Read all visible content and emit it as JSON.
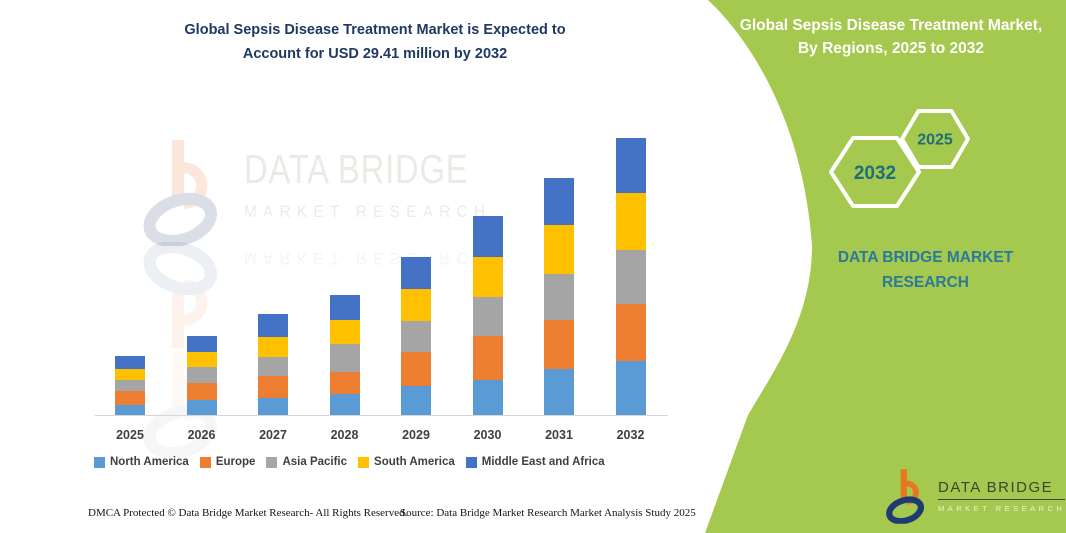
{
  "page": {
    "title_line1": "Global Sepsis Disease Treatment Market is Expected to",
    "title_line2": "Account for USD 29.41 million by 2032",
    "footer_left": "DMCA Protected © Data Bridge Market Research- All Rights Reserved.",
    "footer_right": "Source: Data Bridge Market Research Market Analysis Study 2025"
  },
  "watermark": {
    "line1": "DATA BRIDGE",
    "line2": "MARKET RESEARCH"
  },
  "side_panel": {
    "title": "Global Sepsis Disease Treatment Market, By Regions, 2025 to 2032",
    "hexagon_front_label": "2032",
    "hexagon_back_label": "2025",
    "brand_caption": "DATA BRIDGE MARKET RESEARCH",
    "bg_color": "#A4C94E",
    "hex_text_color": "#1F6F7B"
  },
  "brand_logo": {
    "name": "DATA BRIDGE",
    "tagline": "MARKET RESEARCH",
    "orange": "#E87722",
    "navy": "#1E3C72"
  },
  "chart_data": {
    "type": "bar",
    "stacked": true,
    "title": "Global Sepsis Disease Treatment Market is Expected to Account for USD 29.41 million by 2032",
    "unit": "USD million",
    "values_estimated_from_pixels": true,
    "categories": [
      "2025",
      "2026",
      "2027",
      "2028",
      "2029",
      "2030",
      "2031",
      "2032"
    ],
    "series": [
      {
        "name": "North America",
        "color": "#5B9BD5",
        "values": [
          1.08,
          1.55,
          1.82,
          2.21,
          3.03,
          3.75,
          4.87,
          5.78
        ]
      },
      {
        "name": "Europe",
        "color": "#ED7D31",
        "values": [
          1.43,
          1.8,
          2.35,
          2.32,
          3.64,
          4.64,
          5.17,
          5.99
        ]
      },
      {
        "name": "Asia Pacific",
        "color": "#A5A5A5",
        "values": [
          1.23,
          1.79,
          1.98,
          3.04,
          3.32,
          4.1,
          4.98,
          5.7
        ]
      },
      {
        "name": "South America",
        "color": "#FFC000",
        "values": [
          1.19,
          1.52,
          2.16,
          2.49,
          3.4,
          4.28,
          5.1,
          6.06
        ]
      },
      {
        "name": "Middle East and Africa",
        "color": "#4472C4",
        "values": [
          1.33,
          1.73,
          2.42,
          2.67,
          3.39,
          4.36,
          5.05,
          5.88
        ]
      }
    ],
    "totals": [
      6.26,
      8.39,
      10.73,
      12.73,
      16.78,
      21.13,
      25.17,
      29.41
    ],
    "xlabel": "",
    "ylabel": "",
    "ylim": [
      0,
      29.41
    ],
    "gridlines": false,
    "y_axis_visible": false,
    "legend_position": "bottom"
  }
}
